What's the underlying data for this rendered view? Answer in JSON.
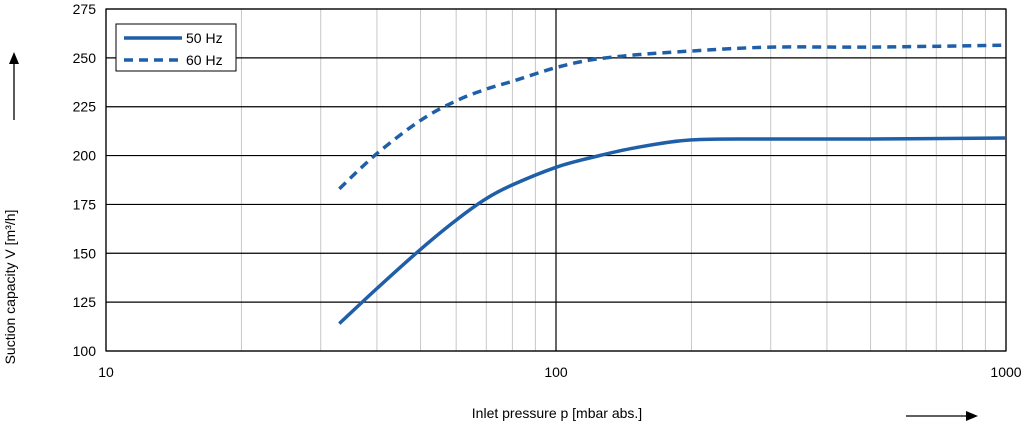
{
  "chart_data": {
    "type": "line",
    "xlabel": "Inlet pressure p [mbar abs.]",
    "ylabel": "Suction capacity V [m³/h]",
    "x_scale": "log",
    "xlim": [
      10,
      1000
    ],
    "ylim": [
      100,
      275
    ],
    "x_ticks": [
      "10",
      "100",
      "1000"
    ],
    "x_tick_values": [
      10,
      100,
      1000
    ],
    "y_ticks": [
      "100",
      "125",
      "150",
      "175",
      "200",
      "225",
      "250",
      "275"
    ],
    "y_tick_values": [
      100,
      125,
      150,
      175,
      200,
      225,
      250,
      275
    ],
    "grid": true,
    "legend_position": "top-left",
    "series": [
      {
        "name": "50 Hz",
        "style": "solid",
        "color": "#1f5fa8",
        "x": [
          33,
          40,
          50,
          60,
          70,
          80,
          100,
          120,
          150,
          200,
          300,
          500,
          1000
        ],
        "y": [
          114,
          132,
          152,
          167,
          178,
          185,
          194,
          199,
          204,
          208,
          208.5,
          208.5,
          209
        ]
      },
      {
        "name": "60 Hz",
        "style": "dashed",
        "color": "#1f5fa8",
        "x": [
          33,
          40,
          50,
          60,
          70,
          80,
          100,
          120,
          150,
          200,
          300,
          500,
          1000
        ],
        "y": [
          183,
          201,
          218,
          228,
          234,
          238,
          245,
          249,
          251.5,
          253.5,
          255.5,
          255.5,
          256.5
        ]
      }
    ]
  }
}
